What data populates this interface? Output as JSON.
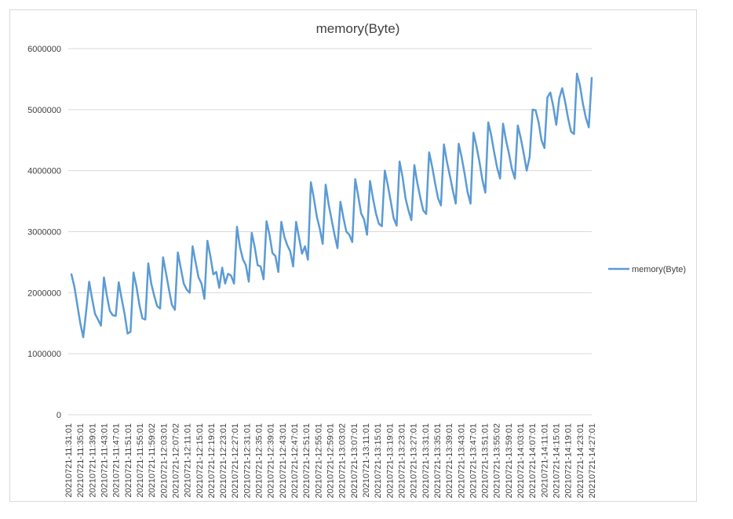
{
  "chart_data": {
    "type": "line",
    "title": "memory(Byte)",
    "xlabel": "",
    "ylabel": "",
    "ylim": [
      0,
      6000000
    ],
    "y_ticks": [
      "0",
      "1000000",
      "2000000",
      "3000000",
      "4000000",
      "5000000",
      "6000000"
    ],
    "grid": "horizontal",
    "legend_position": "right",
    "x_tick_labels": [
      "20210721-11:31:01",
      "20210721-11:35:01",
      "20210721-11:39:01",
      "20210721-11:43:01",
      "20210721-11:47:01",
      "20210721-11:51:01",
      "20210721-11:55:01",
      "20210721-11:59:02",
      "20210721-12:03:01",
      "20210721-12:07:02",
      "20210721-12:11:01",
      "20210721-12:15:01",
      "20210721-12:19:01",
      "20210721-12:23:01",
      "20210721-12:27:01",
      "20210721-12:31:01",
      "20210721-12:35:01",
      "20210721-12:39:01",
      "20210721-12:43:01",
      "20210721-12:47:01",
      "20210721-12:51:01",
      "20210721-12:55:01",
      "20210721-12:59:01",
      "20210721-13:03:02",
      "20210721-13:07:01",
      "20210721-13:11:01",
      "20210721-13:15:01",
      "20210721-13:19:01",
      "20210721-13:23:01",
      "20210721-13:27:01",
      "20210721-13:31:01",
      "20210721-13:35:01",
      "20210721-13:39:01",
      "20210721-13:43:01",
      "20210721-13:47:01",
      "20210721-13:51:01",
      "20210721-13:55:02",
      "20210721-13:59:01",
      "20210721-14:03:01",
      "20210721-14:07:01",
      "20210721-14:11:01",
      "20210721-14:15:01",
      "20210721-14:19:01",
      "20210721-14:23:01",
      "20210721-14:27:01"
    ],
    "series": [
      {
        "name": "memory(Byte)",
        "color": "#5b9bd5",
        "values": [
          2300000,
          2100000,
          1800000,
          1500000,
          1270000,
          1700000,
          2180000,
          1900000,
          1650000,
          1560000,
          1460000,
          2250000,
          1950000,
          1700000,
          1630000,
          1620000,
          2170000,
          1900000,
          1650000,
          1330000,
          1360000,
          2330000,
          2100000,
          1800000,
          1580000,
          1560000,
          2480000,
          2150000,
          1950000,
          1780000,
          1740000,
          2580000,
          2320000,
          2050000,
          1800000,
          1720000,
          2660000,
          2400000,
          2150000,
          2050000,
          2000000,
          2760000,
          2500000,
          2250000,
          2150000,
          1900000,
          2850000,
          2600000,
          2300000,
          2340000,
          2080000,
          2410000,
          2150000,
          2310000,
          2280000,
          2150000,
          3080000,
          2750000,
          2550000,
          2450000,
          2180000,
          2980000,
          2750000,
          2450000,
          2430000,
          2220000,
          3170000,
          2950000,
          2650000,
          2600000,
          2340000,
          3160000,
          2920000,
          2780000,
          2680000,
          2430000,
          3160000,
          2900000,
          2640000,
          2760000,
          2540000,
          3810000,
          3550000,
          3250000,
          3050000,
          2800000,
          3770000,
          3450000,
          3200000,
          2950000,
          2730000,
          3490000,
          3230000,
          3000000,
          2950000,
          2830000,
          3860000,
          3590000,
          3300000,
          3200000,
          2950000,
          3830000,
          3550000,
          3300000,
          3130000,
          3090000,
          4000000,
          3770000,
          3500000,
          3220000,
          3100000,
          4150000,
          3900000,
          3550000,
          3350000,
          3190000,
          4090000,
          3800000,
          3560000,
          3350000,
          3290000,
          4300000,
          4070000,
          3800000,
          3550000,
          3430000,
          4430000,
          4150000,
          3920000,
          3680000,
          3460000,
          4440000,
          4220000,
          3950000,
          3650000,
          3460000,
          4620000,
          4400000,
          4150000,
          3850000,
          3640000,
          4790000,
          4580000,
          4300000,
          4050000,
          3870000,
          4770000,
          4500000,
          4280000,
          4030000,
          3870000,
          4740000,
          4530000,
          4280000,
          4000000,
          4230000,
          5000000,
          4990000,
          4800000,
          4500000,
          4370000,
          5200000,
          5280000,
          5050000,
          4750000,
          5180000,
          5350000,
          5130000,
          4860000,
          4640000,
          4600000,
          5590000,
          5400000,
          5100000,
          4870000,
          4710000,
          5520000
        ]
      }
    ]
  }
}
